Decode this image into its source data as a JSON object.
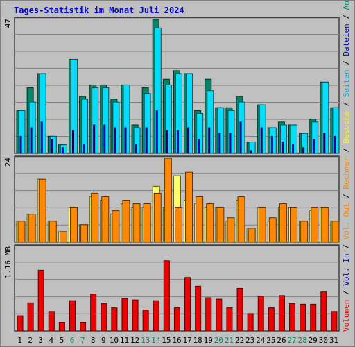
{
  "chart_data": {
    "type": "bar",
    "title": "Tages-Statistik im Monat Juli 2024",
    "categories": [
      "1",
      "2",
      "3",
      "4",
      "5",
      "6",
      "7",
      "8",
      "9",
      "10",
      "11",
      "12",
      "13",
      "14",
      "15",
      "16",
      "17",
      "18",
      "19",
      "20",
      "21",
      "22",
      "23",
      "24",
      "25",
      "26",
      "27",
      "28",
      "29",
      "30",
      "31"
    ],
    "weekend_days": [
      "6",
      "7",
      "13",
      "14",
      "20",
      "21",
      "27",
      "28"
    ],
    "colors": {
      "background": "#c0c0c0",
      "plot_bg": "#c0c0c0",
      "grid": "#808080",
      "title": "#0000cc",
      "weekday_label": "#000000",
      "weekend_label": "#008866",
      "anfragen": "#008866",
      "dateien": "#00ddff",
      "seiten": "#0000ee",
      "besuche": "#ffff66",
      "rechner": "#ff8800",
      "volumen": "#ee0000"
    },
    "panels": [
      {
        "id": "hits",
        "ymax_label": "47",
        "ylim": [
          0,
          47
        ],
        "series": [
          {
            "name": "Anfragen",
            "values": [
              15,
              23,
              28,
              6,
              3,
              33,
              20,
              24,
              24,
              19,
              24,
              10,
              23,
              47,
              26,
              29,
              28,
              15,
              26,
              16,
              16,
              20,
              4,
              17,
              9,
              11,
              10,
              7,
              12,
              25,
              16
            ]
          },
          {
            "name": "Dateien",
            "values": [
              15,
              18,
              28,
              6,
              3,
              33,
              19,
              23,
              23,
              18,
              24,
              9,
              21,
              44,
              24,
              28,
              28,
              14,
              22,
              16,
              15,
              18,
              4,
              17,
              9,
              10,
              10,
              7,
              11,
              25,
              16
            ]
          },
          {
            "name": "Seiten",
            "values": [
              6,
              9,
              11,
              5,
              2,
              8,
              3,
              10,
              10,
              9,
              9,
              3,
              9,
              15,
              8,
              8,
              9,
              5,
              9,
              7,
              7,
              11,
              1,
              9,
              6,
              4,
              3,
              2,
              5,
              7,
              6
            ]
          }
        ]
      },
      {
        "id": "visits",
        "ymax_label": "24",
        "ylim": [
          0,
          24
        ],
        "series": [
          {
            "name": "Besuche",
            "values": [
              6,
              8,
              18,
              6,
              3,
              10,
              5,
              13,
              12,
              8,
              11,
              10,
              10,
              16,
              10,
              19,
              12,
              11,
              10,
              10,
              6,
              12,
              4,
              10,
              6,
              10,
              10,
              6,
              9,
              10,
              6
            ]
          },
          {
            "name": "Rechner",
            "values": [
              6,
              8,
              18,
              6,
              3,
              10,
              5,
              14,
              13,
              9,
              12,
              11,
              11,
              14,
              24,
              10,
              20,
              13,
              11,
              10,
              7,
              13,
              4,
              10,
              7,
              11,
              10,
              6,
              10,
              10,
              6
            ]
          }
        ]
      },
      {
        "id": "volume",
        "ymax_label": "1.16 MB",
        "ylim": [
          0,
          1.16
        ],
        "series": [
          {
            "name": "Volumen",
            "values": [
              0.21,
              0.39,
              0.84,
              0.27,
              0.12,
              0.42,
              0.12,
              0.51,
              0.38,
              0.32,
              0.45,
              0.43,
              0.29,
              0.42,
              0.97,
              0.32,
              0.74,
              0.62,
              0.46,
              0.44,
              0.32,
              0.59,
              0.24,
              0.48,
              0.32,
              0.49,
              0.38,
              0.37,
              0.37,
              0.54,
              0.27
            ]
          }
        ]
      }
    ],
    "right_axis_legend": [
      {
        "text": "Anfragen",
        "color": "#008866"
      },
      {
        "text": "Dateien",
        "color": "#0000cc"
      },
      {
        "text": "Seiten",
        "color": "#00aadd"
      },
      {
        "text": "Besuche",
        "color": "#ffff00"
      },
      {
        "text": "Rechner",
        "color": "#ff8800"
      },
      {
        "text": "Vol. Out",
        "color": "#ff8800"
      },
      {
        "text": "Vol. In",
        "color": "#0000cc"
      },
      {
        "text": "Volumen",
        "color": "#ee0000"
      }
    ],
    "legend_separator": " / "
  }
}
